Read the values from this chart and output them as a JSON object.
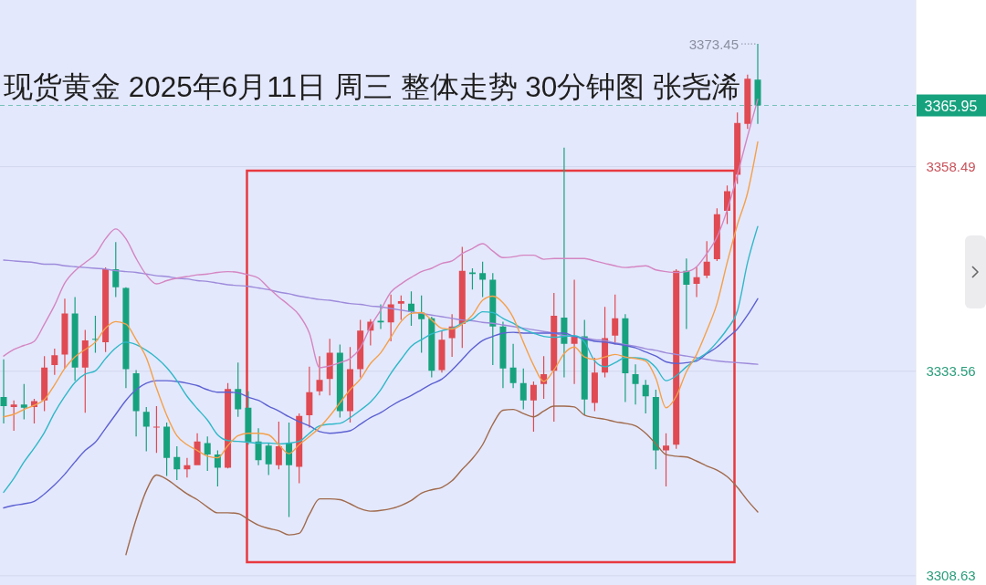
{
  "chart_data": {
    "type": "candlestick",
    "title": "现货黄金 2025年6月11日 周三 整体走势 30分钟图 张尧浠",
    "categories": [
      null,
      null,
      null,
      null,
      null,
      null,
      null,
      null,
      null,
      null,
      null,
      null,
      null,
      null,
      null,
      null,
      null,
      null,
      null,
      null,
      null,
      null,
      null,
      null,
      null,
      null,
      null,
      null,
      null,
      null,
      null,
      null,
      null,
      null,
      null,
      null,
      null,
      null,
      null,
      null,
      null,
      null,
      null,
      null,
      null,
      null,
      null,
      null,
      null,
      null,
      null,
      null,
      null,
      null,
      null,
      null,
      null,
      null,
      null,
      null,
      null,
      null,
      null,
      null,
      null,
      null,
      null,
      null,
      null,
      null,
      null,
      null,
      null,
      null,
      null
    ],
    "ohlc": [
      [
        3330.4,
        3335.0,
        3327.2,
        3329.3
      ],
      [
        3329.2,
        3330.0,
        3326.3,
        3329.5
      ],
      [
        3329.5,
        3332.0,
        3327.7,
        3329.1
      ],
      [
        3329.2,
        3330.2,
        3327.2,
        3329.9
      ],
      [
        3330.0,
        3335.4,
        3328.7,
        3334.0
      ],
      [
        3334.3,
        3336.3,
        3333.1,
        3335.5
      ],
      [
        3335.6,
        3342.4,
        3333.9,
        3340.6
      ],
      [
        3340.6,
        3342.6,
        3332.4,
        3334.0
      ],
      [
        3334.0,
        3338.6,
        3328.5,
        3337.3
      ],
      [
        3337.5,
        3340.3,
        3335.8,
        3337.4
      ],
      [
        3337.1,
        3346.2,
        3335.9,
        3346.0
      ],
      [
        3346.0,
        3349.3,
        3342.6,
        3343.8
      ],
      [
        3343.7,
        3343.8,
        3331.5,
        3333.8
      ],
      [
        3333.3,
        3333.7,
        3325.6,
        3328.7
      ],
      [
        3328.6,
        3329.2,
        3323.8,
        3326.8
      ],
      [
        3326.7,
        3329.3,
        3323.6,
        3326.8
      ],
      [
        3326.8,
        3327.3,
        3320.8,
        3323.0
      ],
      [
        3323.1,
        3324.4,
        3320.3,
        3321.6
      ],
      [
        3321.6,
        3323.0,
        3320.6,
        3322.1
      ],
      [
        3322.1,
        3326.0,
        3322.1,
        3325.0
      ],
      [
        3324.8,
        3325.6,
        3321.4,
        3323.4
      ],
      [
        3323.4,
        3323.9,
        3319.5,
        3321.8
      ],
      [
        3321.8,
        3332.1,
        3321.7,
        3331.4
      ],
      [
        3331.4,
        3334.6,
        3328.0,
        3328.9
      ],
      [
        3329.1,
        3331.1,
        3324.6,
        3324.9
      ],
      [
        3325.0,
        3326.6,
        3322.1,
        3322.7
      ],
      [
        3324.5,
        3324.8,
        3320.9,
        3322.2
      ],
      [
        3322.1,
        3327.4,
        3321.6,
        3324.4
      ],
      [
        3324.8,
        3327.3,
        3315.8,
        3322.1
      ],
      [
        3321.9,
        3328.4,
        3319.9,
        3328.1
      ],
      [
        3328.2,
        3334.1,
        3326.7,
        3331.0
      ],
      [
        3331.1,
        3335.4,
        3330.6,
        3332.5
      ],
      [
        3332.6,
        3337.5,
        3330.6,
        3335.8
      ],
      [
        3335.8,
        3336.8,
        3327.9,
        3328.7
      ],
      [
        3328.7,
        3336.5,
        3327.3,
        3333.8
      ],
      [
        3333.8,
        3339.8,
        3332.8,
        3338.5
      ],
      [
        3338.5,
        3339.9,
        3336.7,
        3339.6
      ],
      [
        3339.7,
        3341.7,
        3338.7,
        3339.5
      ],
      [
        3339.5,
        3342.9,
        3337.2,
        3341.7
      ],
      [
        3341.8,
        3342.8,
        3339.8,
        3342.1
      ],
      [
        3341.8,
        3343.3,
        3339.1,
        3340.8
      ],
      [
        3340.7,
        3342.8,
        3335.8,
        3339.9
      ],
      [
        3340.0,
        3340.2,
        3332.8,
        3333.6
      ],
      [
        3333.7,
        3338.5,
        3333.4,
        3337.4
      ],
      [
        3337.6,
        3340.5,
        3335.3,
        3339.0
      ],
      [
        3339.3,
        3348.7,
        3336.4,
        3345.8
      ],
      [
        3345.6,
        3346.1,
        3343.5,
        3345.4
      ],
      [
        3345.5,
        3346.9,
        3342.6,
        3344.7
      ],
      [
        3344.7,
        3345.5,
        3334.3,
        3339.0
      ],
      [
        3339.0,
        3339.6,
        3331.5,
        3333.9
      ],
      [
        3334.0,
        3336.9,
        3331.5,
        3332.1
      ],
      [
        3332.1,
        3333.9,
        3328.9,
        3330.0
      ],
      [
        3330.0,
        3332.3,
        3326.2,
        3331.9
      ],
      [
        3332.0,
        3335.4,
        3330.2,
        3333.2
      ],
      [
        3333.6,
        3343.1,
        3327.4,
        3340.3
      ],
      [
        3340.1,
        3360.8,
        3332.8,
        3336.9
      ],
      [
        3336.9,
        3344.7,
        3332.0,
        3337.8
      ],
      [
        3337.8,
        3339.8,
        3328.2,
        3330.1
      ],
      [
        3329.7,
        3335.2,
        3328.7,
        3333.4
      ],
      [
        3333.4,
        3341.4,
        3332.8,
        3337.6
      ],
      [
        3337.9,
        3342.9,
        3336.8,
        3340.0
      ],
      [
        3340.0,
        3340.5,
        3329.8,
        3333.3
      ],
      [
        3333.2,
        3334.4,
        3329.5,
        3332.0
      ],
      [
        3331.9,
        3332.5,
        3328.4,
        3330.5
      ],
      [
        3330.4,
        3331.3,
        3321.6,
        3323.9
      ],
      [
        3323.9,
        3326.0,
        3319.5,
        3324.5
      ],
      [
        3324.6,
        3346.0,
        3324.1,
        3345.8
      ],
      [
        3345.8,
        3347.3,
        3338.7,
        3344.1
      ],
      [
        3344.2,
        3346.3,
        3342.6,
        3345.0
      ],
      [
        3345.2,
        3349.4,
        3344.9,
        3346.9
      ],
      [
        3347.2,
        3353.4,
        3347.0,
        3352.7
      ],
      [
        3353.1,
        3356.2,
        3351.5,
        3355.5
      ],
      [
        3357.5,
        3365.1,
        3356.4,
        3363.8
      ],
      [
        3363.7,
        3369.7,
        3363.1,
        3369.2
      ],
      [
        3369.1,
        3373.45,
        3363.7,
        3365.95
      ]
    ],
    "colors": [
      "#17a27e",
      "#e04a52",
      "#17a27e",
      "#e04a52",
      "#e04a52",
      "#e04a52",
      "#e04a52",
      "#17a27e",
      "#e04a52",
      "#17a27e",
      "#e04a52",
      "#17a27e",
      "#17a27e",
      "#17a27e",
      "#17a27e",
      "#e04a52",
      "#17a27e",
      "#17a27e",
      "#e04a52",
      "#e04a52",
      "#17a27e",
      "#17a27e",
      "#e04a52",
      "#17a27e",
      "#17a27e",
      "#17a27e",
      "#17a27e",
      "#e04a52",
      "#17a27e",
      "#e04a52",
      "#e04a52",
      "#e04a52",
      "#e04a52",
      "#17a27e",
      "#e04a52",
      "#e04a52",
      "#e04a52",
      "#17a27e",
      "#e04a52",
      "#e04a52",
      "#17a27e",
      "#17a27e",
      "#17a27e",
      "#e04a52",
      "#e04a52",
      "#e04a52",
      "#17a27e",
      "#17a27e",
      "#17a27e",
      "#17a27e",
      "#17a27e",
      "#17a27e",
      "#e04a52",
      "#e04a52",
      "#e04a52",
      "#17a27e",
      "#e04a52",
      "#17a27e",
      "#e04a52",
      "#e04a52",
      "#e04a52",
      "#17a27e",
      "#17a27e",
      "#17a27e",
      "#17a27e",
      "#e04a52",
      "#e04a52",
      "#17a27e",
      "#e04a52",
      "#e04a52",
      "#e04a52",
      "#e04a52",
      "#e04a52",
      "#e04a52",
      "#17a27e"
    ],
    "series": [
      {
        "type": "line",
        "color": "#9d8bdb",
        "values": [
          3347.1,
          3347.0,
          3346.9,
          3346.8,
          3346.6,
          3346.6,
          3346.4,
          3346.3,
          3346.2,
          3346.1,
          3346.0,
          3345.8,
          3345.7,
          3345.6,
          3345.4,
          3345.2,
          3345.1,
          3344.9,
          3344.8,
          3344.6,
          3344.5,
          3344.3,
          3344.1,
          3344.0,
          3343.9,
          3343.7,
          3343.5,
          3343.2,
          3343.0,
          3342.7,
          3342.5,
          3342.3,
          3342.2,
          3342.0,
          3341.8,
          3341.7,
          3341.5,
          3341.4,
          3341.2,
          3341.0,
          3340.8,
          3340.6,
          3340.4,
          3340.2,
          3340.0,
          3339.8,
          3339.7,
          3339.5,
          3339.4,
          3339.2,
          3339.0,
          3338.8,
          3338.6,
          3338.4,
          3338.2,
          3337.9,
          3337.8,
          3337.6,
          3337.4,
          3337.3,
          3337.0,
          3336.8,
          3336.6,
          3336.3,
          3336.1,
          3335.8,
          3335.6,
          3335.4,
          3335.2,
          3335.0,
          3334.8,
          3334.7,
          3334.6,
          3334.5,
          3334.4
        ]
      },
      {
        "type": "line",
        "color": "#5d62d2",
        "values": [
          3316.9,
          3317.2,
          3317.4,
          3317.7,
          3318.6,
          3319.7,
          3321.0,
          3322.5,
          3323.9,
          3324.9,
          3326.6,
          3328.3,
          3330.0,
          3331.3,
          3332.1,
          3332.4,
          3332.4,
          3332.3,
          3332.1,
          3331.8,
          3331.3,
          3331.0,
          3331.0,
          3330.9,
          3330.4,
          3330.0,
          3329.3,
          3328.7,
          3328.0,
          3327.4,
          3326.9,
          3326.2,
          3326.0,
          3326.1,
          3326.3,
          3327.1,
          3327.9,
          3328.5,
          3329.3,
          3330.0,
          3330.6,
          3331.3,
          3332.0,
          3332.6,
          3333.7,
          3335.0,
          3336.3,
          3337.3,
          3337.8,
          3338.2,
          3338.3,
          3338.2,
          3338.2,
          3338.2,
          3338.2,
          3338.2,
          3337.8,
          3337.5,
          3337.2,
          3337.1,
          3336.9,
          3336.7,
          3336.4,
          3335.9,
          3335.4,
          3334.7,
          3334.5,
          3334.6,
          3334.8,
          3335.7,
          3336.5,
          3337.6,
          3338.7,
          3340.4,
          3342.4
        ]
      },
      {
        "type": "line",
        "color": "#2fb8c8",
        "values": [
          3318.8,
          3320.5,
          3322.5,
          3324.2,
          3326.1,
          3328.5,
          3330.5,
          3332.2,
          3333.2,
          3333.6,
          3335.1,
          3336.4,
          3337.1,
          3336.8,
          3336.1,
          3335.2,
          3334.0,
          3332.4,
          3330.5,
          3329.0,
          3327.6,
          3325.8,
          3325.1,
          3325.0,
          3324.9,
          3324.8,
          3324.8,
          3324.7,
          3324.8,
          3325.0,
          3326.0,
          3326.9,
          3327.1,
          3327.2,
          3327.9,
          3328.8,
          3329.8,
          3331.3,
          3333.3,
          3335.0,
          3336.6,
          3337.4,
          3338.1,
          3338.5,
          3338.8,
          3339.4,
          3339.9,
          3340.8,
          3340.7,
          3340.0,
          3339.4,
          3338.7,
          3338.2,
          3337.8,
          3337.7,
          3337.8,
          3337.9,
          3337.1,
          3334.8,
          3334.1,
          3334.6,
          3335.2,
          3335.2,
          3335.0,
          3334.0,
          3332.4,
          3333.0,
          3334.1,
          3335.0,
          3335.8,
          3337.1,
          3338.7,
          3340.9,
          3346.8,
          3351.2
        ]
      },
      {
        "type": "line",
        "color": "#f4a04a",
        "values": [
          3328.0,
          3328.3,
          3328.9,
          3329.4,
          3330.1,
          3331.9,
          3333.9,
          3335.3,
          3336.2,
          3337.1,
          3338.8,
          3339.6,
          3339.3,
          3337.4,
          3335.2,
          3331.5,
          3328.2,
          3325.7,
          3324.6,
          3323.9,
          3323.2,
          3323.0,
          3324.5,
          3325.7,
          3326.0,
          3326.0,
          3325.8,
          3324.6,
          3323.5,
          3324.6,
          3325.6,
          3326.7,
          3328.1,
          3329.7,
          3331.3,
          3332.6,
          3334.5,
          3335.8,
          3337.7,
          3339.6,
          3340.6,
          3340.7,
          3339.8,
          3338.8,
          3338.7,
          3339.3,
          3340.4,
          3342.2,
          3342.7,
          3341.9,
          3340.1,
          3337.1,
          3334.3,
          3332.3,
          3333.7,
          3335.7,
          3336.5,
          3335.3,
          3335.0,
          3335.3,
          3335.6,
          3335.3,
          3335.1,
          3334.8,
          3332.7,
          3329.1,
          3330.5,
          3333.5,
          3335.6,
          3338.5,
          3341.8,
          3346.8,
          3351.4,
          3355.3,
          3361.5
        ]
      },
      {
        "type": "line",
        "color": "#d486c2",
        "values": [
          3335.4,
          3336.2,
          3336.7,
          3337.2,
          3339.3,
          3341.6,
          3344.3,
          3345.8,
          3346.8,
          3347.8,
          3349.7,
          3350.9,
          3349.7,
          3347.3,
          3345.3,
          3344.2,
          3344.6,
          3344.9,
          3345.1,
          3345.3,
          3345.4,
          3345.6,
          3345.7,
          3345.6,
          3345.3,
          3344.9,
          3343.7,
          3342.6,
          3341.6,
          3340.4,
          3338.2,
          3334.0,
          3334.2,
          3334.6,
          3335.1,
          3336.4,
          3339.0,
          3341.0,
          3343.2,
          3344.2,
          3345.0,
          3345.7,
          3346.1,
          3346.7,
          3347.0,
          3347.9,
          3348.5,
          3349.1,
          3348.2,
          3347.4,
          3347.5,
          3347.7,
          3347.7,
          3347.2,
          3347.3,
          3347.3,
          3347.3,
          3347.3,
          3347.0,
          3346.7,
          3346.4,
          3346.2,
          3346.3,
          3346.4,
          3345.9,
          3345.7,
          3345.6,
          3345.7,
          3346.3,
          3347.9,
          3349.9,
          3353.2,
          3357.5,
          3362.2,
          3366.7
        ]
      },
      {
        "type": "line",
        "color": "#a06a4c",
        "values": [
          null,
          null,
          null,
          null,
          null,
          null,
          null,
          null,
          null,
          null,
          null,
          null,
          3311.2,
          3315.5,
          3319.0,
          3320.9,
          3320.4,
          3319.5,
          3318.6,
          3317.9,
          3317.0,
          3316.3,
          3316.3,
          3316.2,
          3315.5,
          3314.8,
          3314.4,
          3314.1,
          3313.6,
          3313.8,
          3316.1,
          3318.0,
          3318.0,
          3317.9,
          3317.4,
          3316.8,
          3316.5,
          3316.6,
          3316.8,
          3317.2,
          3317.8,
          3318.7,
          3319.1,
          3319.4,
          3320.2,
          3321.6,
          3322.9,
          3324.6,
          3327.1,
          3328.8,
          3328.9,
          3328.4,
          3328.0,
          3328.7,
          3329.3,
          3329.3,
          3329.2,
          3328.2,
          3327.9,
          3327.7,
          3327.4,
          3327.2,
          3326.9,
          3326.0,
          3324.7,
          3323.4,
          3323.2,
          3323.1,
          3322.6,
          3322.0,
          3321.5,
          3320.7,
          3319.4,
          3317.8,
          3316.4
        ]
      }
    ],
    "ylim": [
      3307.5,
      3378.8
    ],
    "yticks": [
      3308.63,
      3333.56,
      3358.49
    ],
    "grid": "y",
    "tick_labels": "y",
    "ref_lines": [
      {
        "axis": "y",
        "value": 3365.95,
        "label": "3365.95",
        "color": "#17a27e",
        "line_style": "dashed"
      }
    ],
    "annotations": [
      "3373.45"
    ]
  }
}
